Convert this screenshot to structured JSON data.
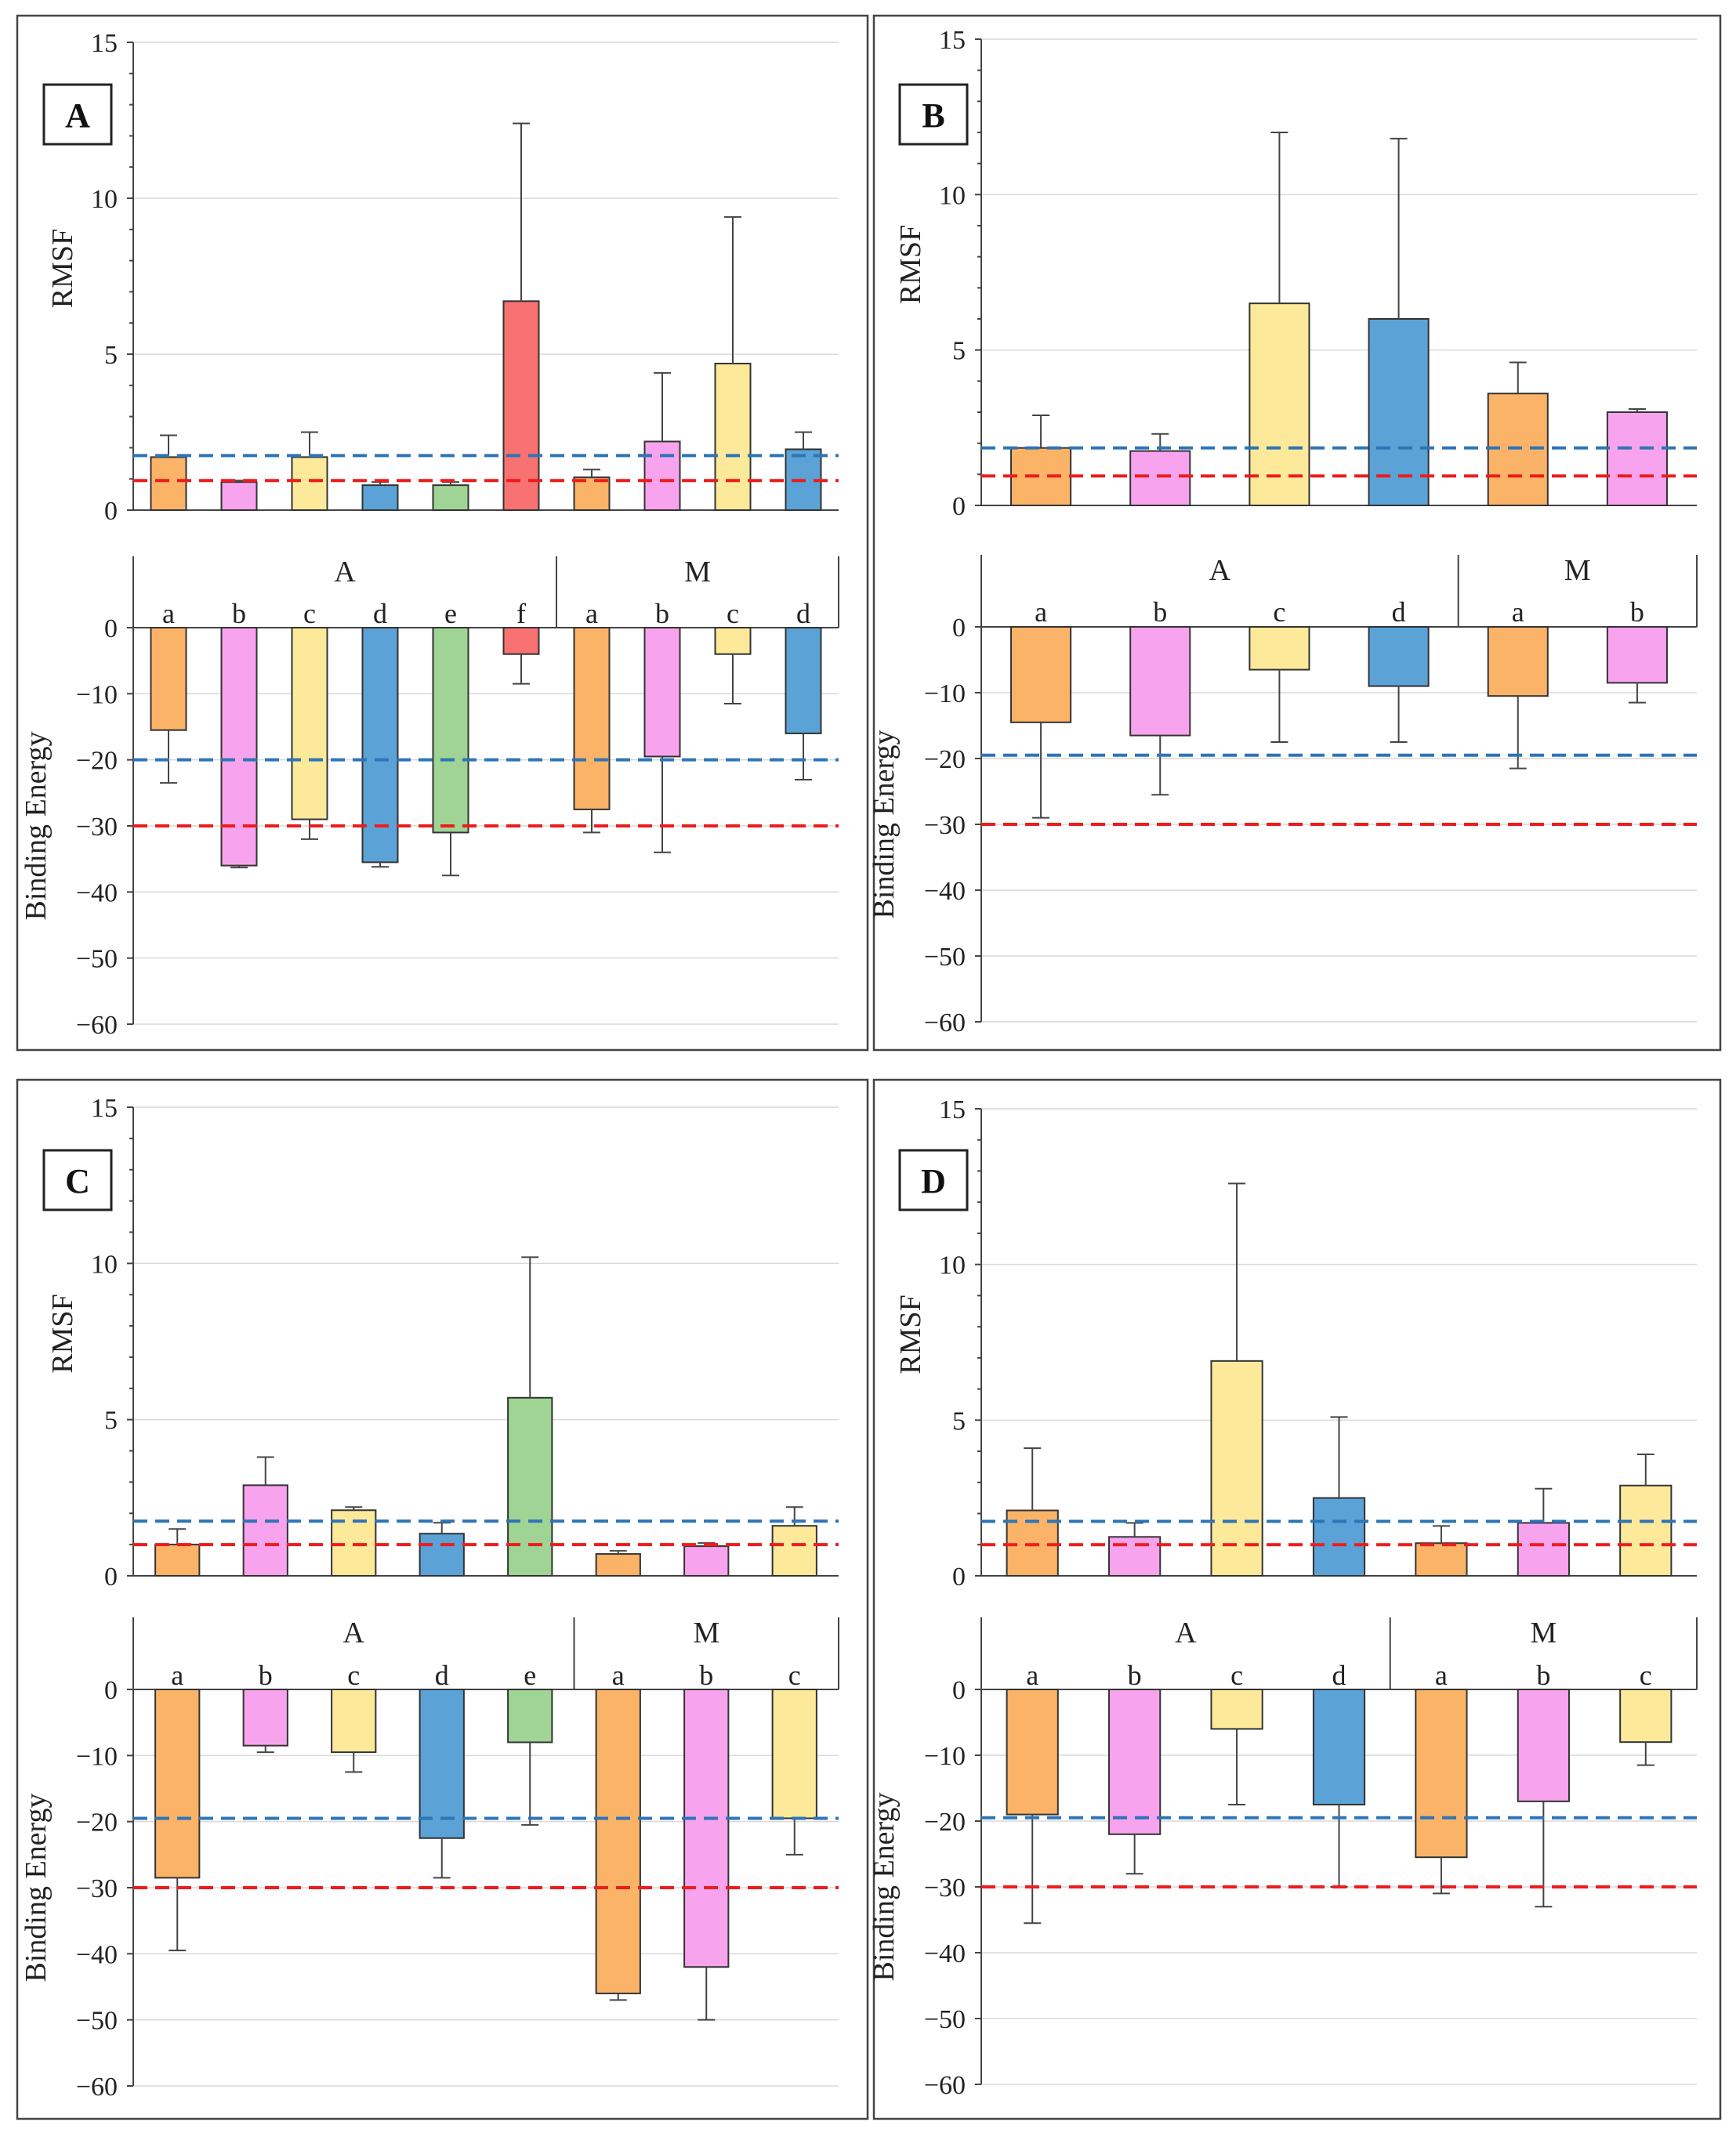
{
  "colors": {
    "a": "#fbb368",
    "b": "#f8a3ee",
    "c": "#fde99a",
    "d": "#5ba2d6",
    "e": "#9fd494",
    "f": "#f97272",
    "ref_high": "#2e75b6",
    "ref_low": "#ee1c1c"
  },
  "chart_data": [
    {
      "type": "bar",
      "panel": "A",
      "rmsf": {
        "ylabel": "RMSF",
        "ylim": [
          0,
          15
        ],
        "ticks": [
          0,
          5,
          10,
          15
        ],
        "values": [
          1.7,
          0.9,
          1.7,
          0.8,
          0.8,
          6.7,
          1.05,
          2.2,
          4.7,
          1.95
        ],
        "err_top": [
          2.4,
          0.95,
          2.5,
          0.9,
          0.9,
          12.4,
          1.3,
          4.4,
          9.4,
          2.5
        ],
        "ref_high": 1.75,
        "ref_low": 0.95
      },
      "binding": {
        "ylabel": "Binding Energy",
        "ylim": [
          -60,
          0
        ],
        "ticks": [
          0,
          -10,
          -20,
          -30,
          -40,
          -50,
          -60
        ],
        "values": [
          -15.5,
          -36.0,
          -29.0,
          -35.5,
          -31.0,
          -4.0,
          -27.5,
          -19.5,
          -4.0,
          -16.0
        ],
        "err_end": [
          -23.5,
          -36.3,
          -32.0,
          -36.2,
          -37.5,
          -8.5,
          -31.0,
          -34.0,
          -11.5,
          -23.0
        ],
        "ref_high": -20,
        "ref_low": -30
      },
      "groups": [
        {
          "name": "A",
          "labels": [
            "a",
            "b",
            "c",
            "d",
            "e",
            "f"
          ]
        },
        {
          "name": "M",
          "labels": [
            "a",
            "b",
            "c",
            "d"
          ]
        }
      ]
    },
    {
      "type": "bar",
      "panel": "B",
      "rmsf": {
        "ylabel": "RMSF",
        "ylim": [
          0,
          15
        ],
        "ticks": [
          0,
          5,
          10,
          15
        ],
        "values": [
          1.85,
          1.75,
          6.5,
          6.0,
          3.6,
          3.0
        ],
        "err_top": [
          2.9,
          2.3,
          12.0,
          11.8,
          4.6,
          3.1
        ],
        "ref_high": 1.85,
        "ref_low": 0.95
      },
      "binding": {
        "ylabel": "Binding Energy",
        "ylim": [
          -60,
          0
        ],
        "ticks": [
          0,
          -10,
          -20,
          -30,
          -40,
          -50,
          -60
        ],
        "values": [
          -14.5,
          -16.5,
          -6.5,
          -9.0,
          -10.5,
          -8.5
        ],
        "err_end": [
          -29.0,
          -25.5,
          -17.5,
          -17.5,
          -21.5,
          -11.5
        ],
        "ref_high": -19.5,
        "ref_low": -30
      },
      "groups": [
        {
          "name": "A",
          "labels": [
            "a",
            "b",
            "c",
            "d"
          ]
        },
        {
          "name": "M",
          "labels": [
            "a",
            "b"
          ]
        }
      ]
    },
    {
      "type": "bar",
      "panel": "C",
      "rmsf": {
        "ylabel": "RMSF",
        "ylim": [
          0,
          15
        ],
        "ticks": [
          0,
          5,
          10,
          15
        ],
        "values": [
          1.0,
          2.9,
          2.1,
          1.35,
          5.7,
          0.7,
          0.95,
          1.6
        ],
        "err_top": [
          1.5,
          3.8,
          2.2,
          1.7,
          10.2,
          0.8,
          1.05,
          2.2
        ],
        "ref_high": 1.75,
        "ref_low": 1.0
      },
      "binding": {
        "ylabel": "Binding Energy",
        "ylim": [
          -60,
          0
        ],
        "ticks": [
          0,
          -10,
          -20,
          -30,
          -40,
          -50,
          -60
        ],
        "values": [
          -28.5,
          -8.5,
          -9.5,
          -22.5,
          -8.0,
          -46.0,
          -42.0,
          -19.5
        ],
        "err_end": [
          -39.5,
          -9.5,
          -12.5,
          -28.5,
          -20.5,
          -47.0,
          -50.0,
          -25.0
        ],
        "ref_high": -19.5,
        "ref_low": -30
      },
      "groups": [
        {
          "name": "A",
          "labels": [
            "a",
            "b",
            "c",
            "d",
            "e"
          ]
        },
        {
          "name": "M",
          "labels": [
            "a",
            "b",
            "c"
          ]
        }
      ]
    },
    {
      "type": "bar",
      "panel": "D",
      "rmsf": {
        "ylabel": "RMSF",
        "ylim": [
          0,
          15
        ],
        "ticks": [
          0,
          5,
          10,
          15
        ],
        "values": [
          2.1,
          1.25,
          6.9,
          2.5,
          1.05,
          1.7,
          2.9
        ],
        "err_top": [
          4.1,
          1.7,
          12.6,
          5.1,
          1.6,
          2.8,
          3.9
        ],
        "ref_high": 1.75,
        "ref_low": 1.0
      },
      "binding": {
        "ylabel": "Binding Energy",
        "ylim": [
          -60,
          0
        ],
        "ticks": [
          0,
          -10,
          -20,
          -30,
          -40,
          -50,
          -60
        ],
        "values": [
          -19.0,
          -22.0,
          -6.0,
          -17.5,
          -25.5,
          -17.0,
          -8.0
        ],
        "err_end": [
          -35.5,
          -28.0,
          -17.5,
          -30.0,
          -31.0,
          -33.0,
          -11.5
        ],
        "ref_high": -19.5,
        "ref_low": -30
      },
      "groups": [
        {
          "name": "A",
          "labels": [
            "a",
            "b",
            "c",
            "d"
          ]
        },
        {
          "name": "M",
          "labels": [
            "a",
            "b",
            "c"
          ]
        }
      ]
    }
  ]
}
